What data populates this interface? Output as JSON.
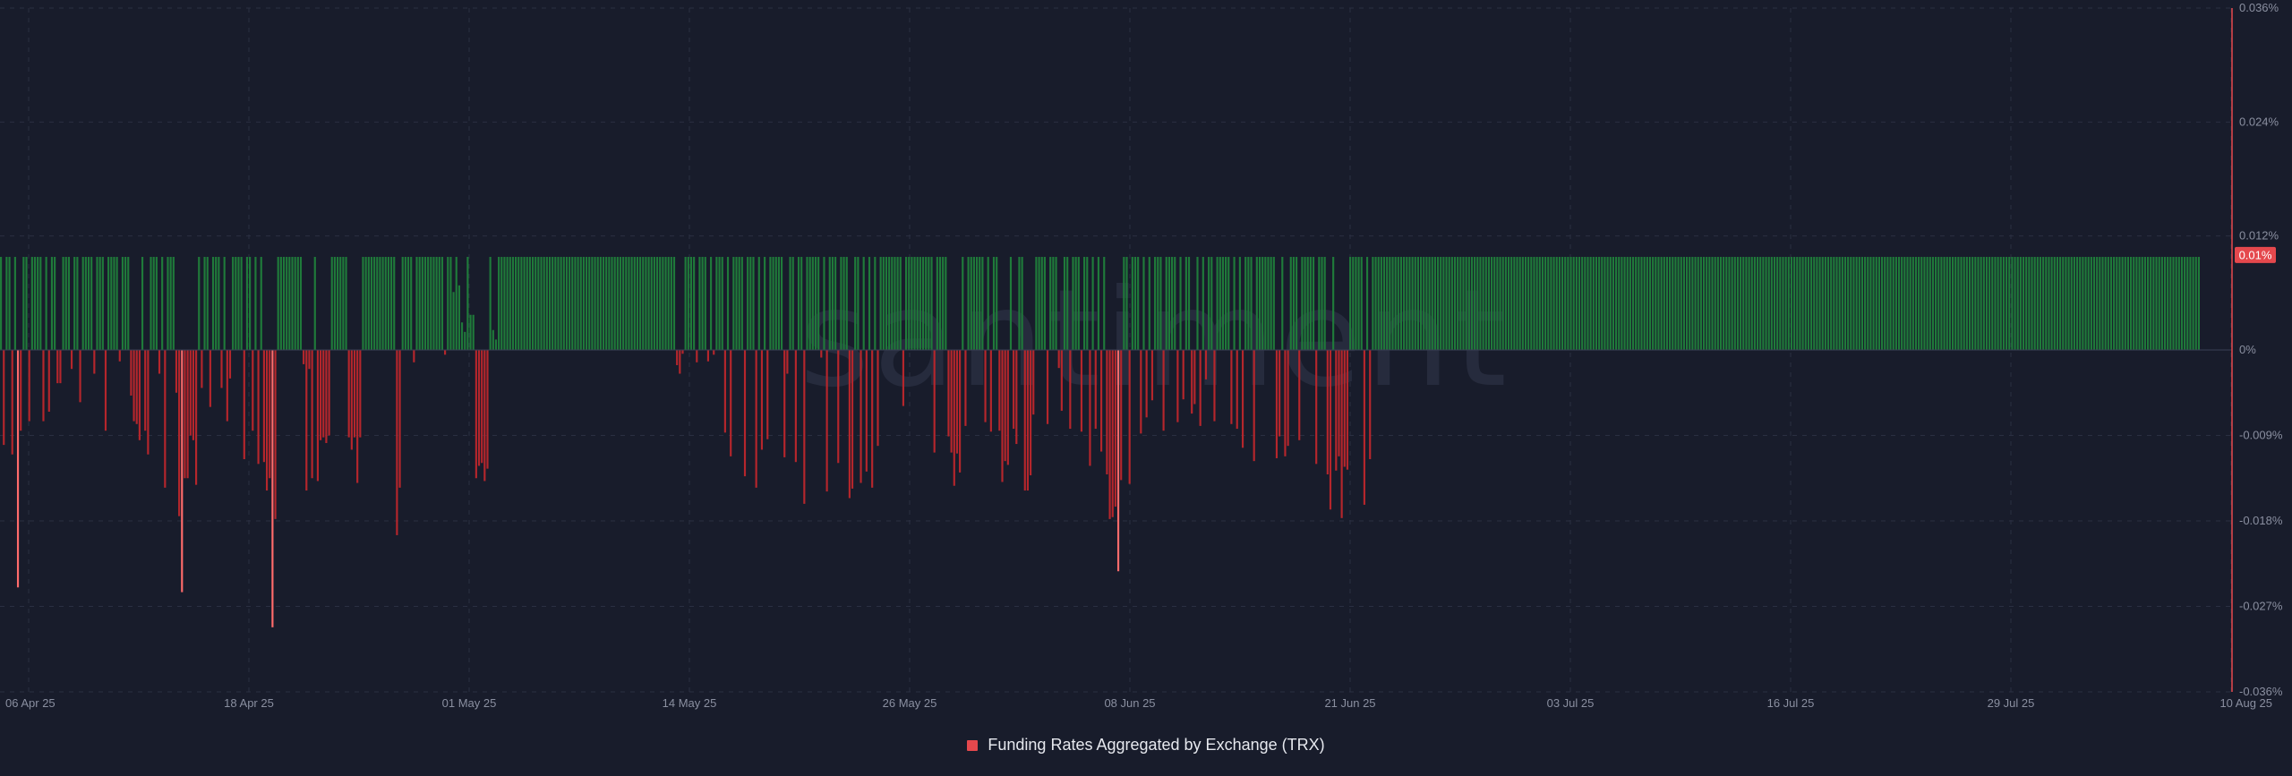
{
  "watermark": "santiment",
  "current_value_badge": "0.01%",
  "legend": {
    "label": "Funding Rates Aggregated by Exchange (TRX)",
    "color": "#e5484d"
  },
  "colors": {
    "positive": "#1f7a3a",
    "positive_spike": "#3ddc5a",
    "negative": "#b5262c",
    "negative_spike": "#ff6b6b",
    "zero_line": "#3a3f55",
    "right_axis_line": "#e5484d",
    "badge_bg": "#e5484d",
    "background": "#181c2b"
  },
  "chart_data": {
    "type": "bar",
    "title": "",
    "series": [
      {
        "name": "Funding Rates Aggregated by Exchange (TRX)",
        "unit": "%",
        "resolution": "8h",
        "x_start": "2025-04-06",
        "x_end": "2025-08-10",
        "values": [
          0.0098,
          -0.01,
          0.0098,
          0.0098,
          -0.011,
          0.0098,
          -0.025,
          -0.0085,
          0.0098,
          0.0098,
          -0.0075,
          0.0098,
          0.0098,
          0.0098,
          0.0098,
          -0.0075,
          0.0098,
          -0.0065,
          0.0098,
          0.0098,
          -0.0035,
          -0.0035,
          0.0098,
          0.0098,
          0.0098,
          -0.002,
          0.0098,
          0.0098,
          -0.0055,
          0.0098,
          0.0098,
          0.0098,
          0.0098,
          -0.0025,
          0.0098,
          0.0098,
          0.0098,
          -0.0085,
          0.0098,
          0.0098,
          0.0098,
          0.0098,
          -0.0012,
          0.0098,
          0.0098,
          0.0098,
          -0.0048,
          -0.0075,
          -0.0078,
          -0.0095,
          0.0098,
          -0.0085,
          -0.011,
          0.0098,
          0.0098,
          0.0098,
          -0.0025,
          0.0098,
          -0.0145,
          0.0098,
          0.0098,
          0.0098,
          -0.0045,
          -0.0175,
          -0.0255,
          -0.0135,
          -0.0135,
          -0.009,
          -0.0095,
          -0.0142,
          0.0098,
          -0.004,
          0.0098,
          0.0098,
          -0.006,
          0.0098,
          0.0098,
          0.0098,
          -0.004,
          0.0098,
          -0.0075,
          -0.003,
          0.0098,
          0.0098,
          0.0098,
          0.0098,
          -0.0115,
          0.0098,
          0.0098,
          -0.0085,
          0.0098,
          -0.012,
          0.0098,
          -0.0118,
          -0.0148,
          -0.0135,
          -0.0292,
          -0.0178,
          0.0098,
          0.0098,
          0.0098,
          0.0098,
          0.0098,
          0.0098,
          0.0098,
          0.0098,
          0.0098,
          -0.0015,
          -0.0148,
          -0.002,
          -0.0135,
          0.0098,
          -0.0138,
          -0.0095,
          -0.0092,
          -0.0098,
          -0.009,
          0.0098,
          0.0098,
          0.0098,
          0.0098,
          0.0098,
          0.0098,
          -0.0092,
          -0.0105,
          -0.0092,
          -0.014,
          -0.0092,
          0.0098,
          0.0098,
          0.0098,
          0.0098,
          0.0098,
          0.0098,
          0.0098,
          0.0098,
          0.0098,
          0.0098,
          0.0098,
          0.0098,
          -0.0195,
          -0.0145,
          0.0098,
          0.0098,
          0.0098,
          0.0098,
          -0.0013,
          0.0098,
          0.0098,
          0.0098,
          0.0098,
          0.0098,
          0.0098,
          0.0098,
          0.0098,
          0.0098,
          0.0098,
          -0.0005,
          0.0098,
          0.0098,
          0.0061,
          0.0098,
          0.0068,
          0.0029,
          0.0019,
          0.0098,
          0.0037,
          0.0037,
          -0.0135,
          -0.0122,
          -0.0119,
          -0.0138,
          -0.0125,
          0.0098,
          0.0021,
          0.0011,
          0.0098,
          0.0098,
          0.0098,
          0.0098,
          0.0098,
          0.0098,
          0.0098,
          0.0098,
          0.0098,
          0.0098,
          0.0098,
          0.0098,
          0.0098,
          0.0098,
          0.0098,
          0.0098,
          0.0098,
          0.0098,
          0.0098,
          0.0098,
          0.0098,
          0.0098,
          0.0098,
          0.0098,
          0.0098,
          0.0098,
          0.0098,
          0.0098,
          0.0098,
          0.0098,
          0.0098,
          0.0098,
          0.0098,
          0.0098,
          0.0098,
          0.0098,
          0.0098,
          0.0098,
          0.0098,
          0.0098,
          0.0098,
          0.0098,
          0.0098,
          0.0098,
          0.0098,
          0.0098,
          0.0098,
          0.0098,
          0.0098,
          0.0098,
          0.0098,
          0.0098,
          0.0098,
          0.0098,
          0.0098,
          0.0098,
          0.0098,
          0.0098,
          0.0098,
          0.0098,
          0.0098,
          0.0098,
          0.0098,
          -0.0016,
          -0.0025,
          -0.0004,
          0.0098,
          0.0098,
          0.0098,
          0.0098,
          -0.0013,
          0.0098,
          0.0098,
          0.0098,
          -0.0012,
          0.0098,
          -0.0005,
          0.0098,
          0.0098,
          0.0098,
          -0.0087,
          0.0098,
          -0.0112,
          0.0098,
          0.0098,
          0.0098,
          0.0098,
          -0.0133,
          0.0098,
          0.0098,
          0.0098,
          -0.0145,
          0.0098,
          -0.0105,
          0.0098,
          -0.0094,
          0.0098,
          0.0098,
          0.0098,
          0.0098,
          0.0098,
          -0.0113,
          -0.0025,
          0.0098,
          0.0098,
          -0.0118,
          0.0098,
          0.0098,
          -0.0162,
          0.0098,
          0.0098,
          0.0098,
          0.0098,
          0.0098,
          -0.0008,
          0.0098,
          -0.0149,
          0.0098,
          0.0098,
          0.0098,
          -0.0119,
          0.0098,
          0.0098,
          0.0098,
          -0.0156,
          -0.0146,
          0.0098,
          0.0098,
          -0.014,
          0.0098,
          -0.0128,
          0.0098,
          -0.0145,
          0.0098,
          -0.0101,
          0.0098,
          0.0098,
          0.0098,
          0.0098,
          0.0098,
          0.0098,
          0.0098,
          0.0098,
          -0.0059,
          0.0098,
          0.0098,
          0.0098,
          0.0098,
          0.0098,
          0.0098,
          0.0098,
          0.0098,
          0.0098,
          0.0098,
          -0.0108,
          0.0098,
          0.0098,
          0.0098,
          0.0098,
          -0.0091,
          -0.0108,
          -0.0143,
          -0.0109,
          -0.0129,
          0.0098,
          -0.008,
          0.0098,
          0.0098,
          0.0098,
          0.0098,
          0.0098,
          0.0098,
          -0.0076,
          0.0098,
          -0.0086,
          0.0098,
          0.0098,
          -0.0085,
          -0.0139,
          -0.0117,
          -0.0121,
          0.0098,
          -0.0083,
          -0.0099,
          0.0098,
          0.0098,
          -0.0148,
          -0.0148,
          -0.0132,
          -0.0068,
          0.0098,
          0.0098,
          0.0098,
          0.0098,
          -0.0078,
          0.0098,
          0.0098,
          0.0098,
          -0.0019,
          -0.0064,
          0.0098,
          0.0098,
          -0.0083,
          0.0098,
          0.0098,
          0.0098,
          -0.0086,
          0.0098,
          0.0098,
          -0.0122,
          0.0098,
          -0.0083,
          0.0098,
          -0.0107,
          0.0098,
          -0.0131,
          -0.0178,
          -0.0176,
          -0.0165,
          -0.0233,
          -0.0137,
          0.0098,
          0.0098,
          -0.0141,
          0.0098,
          0.0098,
          0.0098,
          -0.0088,
          0.0098,
          -0.0071,
          0.0098,
          -0.0053,
          0.0098,
          0.0098,
          0.0098,
          -0.0085,
          0.0098,
          0.0098,
          0.0098,
          0.0098,
          -0.0076,
          0.0098,
          -0.0052,
          0.0098,
          0.0098,
          -0.0067,
          -0.0057,
          0.0098,
          -0.008,
          0.0098,
          -0.0031,
          0.0098,
          0.0098,
          -0.0075,
          0.0098,
          0.0098,
          0.0098,
          0.0098,
          0.0098,
          -0.0078,
          0.0098,
          -0.0083,
          0.0098,
          -0.0103,
          0.0098,
          0.0098,
          0.0098,
          -0.0117,
          0.0098,
          0.0098,
          0.0098,
          0.0098,
          0.0098,
          0.0098,
          0.0098,
          -0.0114,
          -0.0091,
          0.0098,
          -0.0112,
          -0.0101,
          0.0098,
          0.0098,
          0.0098,
          -0.0095,
          0.0098,
          0.0098,
          0.0098,
          0.0098,
          0.0098,
          -0.012,
          0.0098,
          0.0098,
          0.0098,
          -0.0131,
          -0.0168,
          0.0098,
          -0.0127,
          -0.0112,
          -0.0177,
          -0.0123,
          -0.0126,
          0.0098,
          0.0098,
          0.0098,
          0.0098,
          0.0098,
          -0.0163,
          0.0098,
          -0.0115,
          0.0098,
          0.0098,
          0.0098,
          0.0098,
          0.0098,
          0.0098,
          0.0098,
          0.0098,
          0.0098,
          0.0098,
          0.0098,
          0.0098,
          0.0098,
          0.0098,
          0.0098,
          0.0098,
          0.0098,
          0.0098,
          0.0098,
          0.0098,
          0.0098,
          0.0098,
          0.0098,
          0.0098,
          0.0098,
          0.0098,
          0.0098,
          0.0098,
          0.0098,
          0.0098,
          0.0098,
          0.0098,
          0.0098,
          0.0098,
          0.0098,
          0.0098,
          0.0098,
          0.0098,
          0.0098,
          0.0098,
          0.0098,
          0.0098,
          0.0098,
          0.0098,
          0.0098,
          0.0098,
          0.0098,
          0.0098,
          0.0098,
          0.0098,
          0.0098,
          0.0098,
          0.0098,
          0.0098,
          0.0098,
          0.0098,
          0.0098,
          0.0098,
          0.0098,
          0.0098,
          0.0098,
          0.0098,
          0.0098,
          0.0098,
          0.0098,
          0.0098,
          0.0098,
          0.0098,
          0.0098,
          0.0098,
          0.0098,
          0.0098,
          0.0098,
          0.0098,
          0.0098,
          0.0098,
          0.0098,
          0.0098,
          0.0098,
          0.0098,
          0.0098,
          0.0098,
          0.0098,
          0.0098,
          0.0098,
          0.0098,
          0.0098,
          0.0098,
          0.0098,
          0.0098,
          0.0098,
          0.0098,
          0.0098,
          0.0098,
          0.0098,
          0.0098,
          0.0098,
          0.0098,
          0.0098,
          0.0098,
          0.0098,
          0.0098,
          0.0098,
          0.0098,
          0.0098,
          0.0098,
          0.0098,
          0.0098,
          0.0098,
          0.0098,
          0.0098,
          0.0098,
          0.0098,
          0.0098,
          0.0098,
          0.0098,
          0.0098,
          0.0098,
          0.0098,
          0.0098,
          0.0098,
          0.0098,
          0.0098,
          0.0098,
          0.0098,
          0.0098,
          0.0098,
          0.0098,
          0.0098,
          0.0098,
          0.0098,
          0.0098,
          0.0098,
          0.0098,
          0.0098,
          0.0098,
          0.0098,
          0.0098,
          0.0098,
          0.0098,
          0.0098,
          0.0098,
          0.0098,
          0.0098,
          0.0098,
          0.0098,
          0.0098,
          0.0098,
          0.0098,
          0.0098,
          0.0098,
          0.0098,
          0.0098,
          0.0098,
          0.0098,
          0.0098,
          0.0098,
          0.0098,
          0.0098,
          0.0098,
          0.0098,
          0.0098,
          0.0098,
          0.0098,
          0.0098,
          0.0098,
          0.0098,
          0.0098,
          0.0098,
          0.0098,
          0.0098,
          0.0098,
          0.0098,
          0.0098,
          0.0098,
          0.0098,
          0.0098,
          0.0098,
          0.0098,
          0.0098,
          0.0098,
          0.0098,
          0.0098,
          0.0098,
          0.0098,
          0.0098,
          0.0098,
          0.0098,
          0.0098,
          0.0098,
          0.0098,
          0.0098,
          0.0098,
          0.0098,
          0.0098,
          0.0098,
          0.0098,
          0.0098,
          0.0098,
          0.0098,
          0.0098,
          0.0098,
          0.0098,
          0.0098,
          0.0098,
          0.0098,
          0.0098,
          0.0098,
          0.0098,
          0.0098,
          0.0098,
          0.0098,
          0.0098,
          0.0098,
          0.0098,
          0.0098,
          0.0098,
          0.0098,
          0.0098,
          0.0098,
          0.0098,
          0.0098,
          0.0098,
          0.0098,
          0.0098,
          0.0098,
          0.0098,
          0.0098,
          0.0098,
          0.0098,
          0.0098,
          0.0098,
          0.0098,
          0.0098,
          0.0098,
          0.0098,
          0.0098,
          0.0098,
          0.0098,
          0.0098,
          0.0098,
          0.0098,
          0.0098,
          0.0098,
          0.0098,
          0.0098,
          0.0098,
          0.0098,
          0.0098,
          0.0098,
          0.0098,
          0.0098,
          0.0098,
          0.0098,
          0.0098,
          0.0098,
          0.0098,
          0.0098,
          0.0098,
          0.0098,
          0.0098,
          0.0098,
          0.0098,
          0.0098,
          0.0098,
          0.0098,
          0.0098,
          0.0098,
          0.0098,
          0.0098,
          0.0098,
          0.0098,
          0.0098,
          0.0098,
          0.0098,
          0.0098,
          0.0098,
          0.0098,
          0.0098,
          0.0098,
          0.0098,
          0.0098,
          0.0098,
          0.0098,
          0.0098,
          0.0098,
          0.0098,
          0.0098,
          0.0098,
          0.0098,
          0.0098,
          0.0098,
          0.0098
        ]
      }
    ],
    "x_ticks": [
      "06 Apr 25",
      "18 Apr 25",
      "01 May 25",
      "14 May 25",
      "26 May 25",
      "08 Jun 25",
      "21 Jun 25",
      "03 Jul 25",
      "16 Jul 25",
      "29 Jul 25",
      "10 Aug 25"
    ],
    "y_ticks": [
      "0.036%",
      "0.024%",
      "0.012%",
      "0%",
      "-0.009%",
      "-0.018%",
      "-0.027%",
      "-0.036%"
    ],
    "y_tick_values": [
      0.036,
      0.024,
      0.012,
      0,
      -0.009,
      -0.018,
      -0.027,
      -0.036
    ],
    "ylim": [
      -0.036,
      0.036
    ],
    "xlabel": "",
    "ylabel": "",
    "grid": true,
    "legend_position": "bottom-center"
  }
}
